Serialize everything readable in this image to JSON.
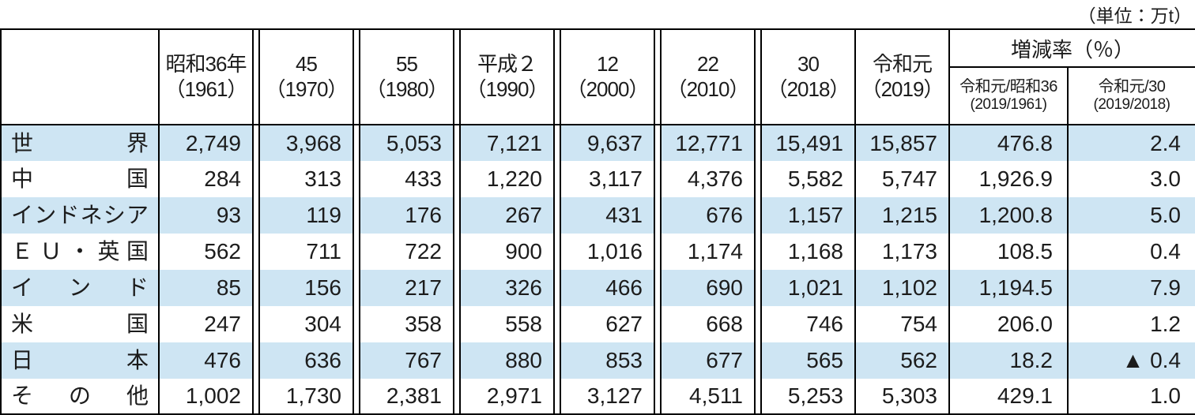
{
  "unit_label": "（単位：万t）",
  "colors": {
    "stripe": "#cee5f3",
    "border": "#000000",
    "text": "#1c1c1c"
  },
  "table": {
    "columns": [
      {
        "line1": "昭和36年",
        "line2": "（1961）"
      },
      {
        "line1": "45",
        "line2": "（1970）"
      },
      {
        "line1": "55",
        "line2": "（1980）"
      },
      {
        "line1": "平成２",
        "line2": "（1990）"
      },
      {
        "line1": "12",
        "line2": "（2000）"
      },
      {
        "line1": "22",
        "line2": "（2010）"
      },
      {
        "line1": "30",
        "line2": "（2018）"
      },
      {
        "line1": "令和元",
        "line2": "（2019）"
      }
    ],
    "rate_group": {
      "title": "増減率（％）",
      "sub": [
        {
          "line1": "令和元/昭和36",
          "line2": "(2019/1961)"
        },
        {
          "line1": "令和元/30",
          "line2": "(2019/2018)"
        }
      ]
    },
    "rows": [
      {
        "label": "世界",
        "values": [
          "2,749",
          "3,968",
          "5,053",
          "7,121",
          "9,637",
          "12,771",
          "15,491",
          "15,857",
          "476.8",
          "2.4"
        ]
      },
      {
        "label": "中国",
        "values": [
          "284",
          "313",
          "433",
          "1,220",
          "3,117",
          "4,376",
          "5,582",
          "5,747",
          "1,926.9",
          "3.0"
        ]
      },
      {
        "label": "インドネシア",
        "values": [
          "93",
          "119",
          "176",
          "267",
          "431",
          "676",
          "1,157",
          "1,215",
          "1,200.8",
          "5.0"
        ]
      },
      {
        "label": "ＥＵ・英国",
        "values": [
          "562",
          "711",
          "722",
          "900",
          "1,016",
          "1,174",
          "1,168",
          "1,173",
          "108.5",
          "0.4"
        ]
      },
      {
        "label": "インド",
        "values": [
          "85",
          "156",
          "217",
          "326",
          "466",
          "690",
          "1,021",
          "1,102",
          "1,194.5",
          "7.9"
        ]
      },
      {
        "label": "米国",
        "values": [
          "247",
          "304",
          "358",
          "558",
          "627",
          "668",
          "746",
          "754",
          "206.0",
          "1.2"
        ]
      },
      {
        "label": "日本",
        "values": [
          "476",
          "636",
          "767",
          "880",
          "853",
          "677",
          "565",
          "562",
          "18.2",
          "▲ 0.4"
        ]
      },
      {
        "label": "その他",
        "values": [
          "1,002",
          "1,730",
          "2,381",
          "2,971",
          "3,127",
          "4,511",
          "5,253",
          "5,303",
          "429.1",
          "1.0"
        ]
      }
    ]
  }
}
